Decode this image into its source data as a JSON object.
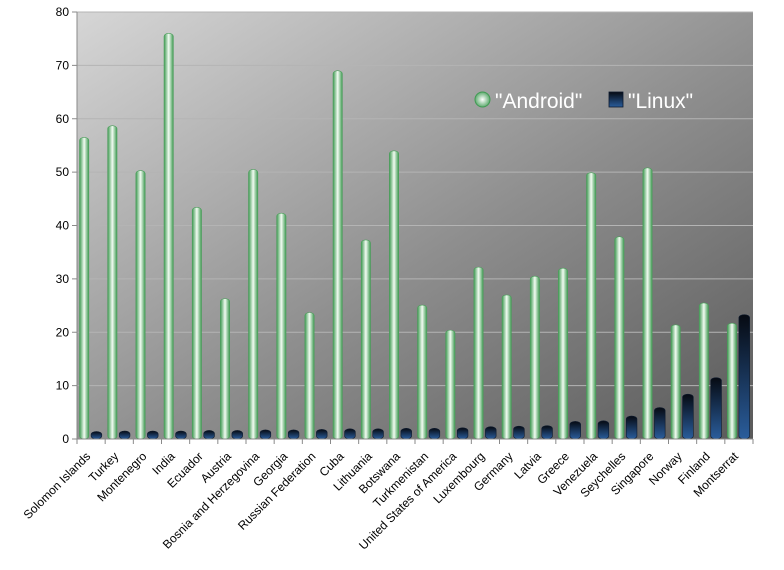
{
  "chart_data": {
    "type": "bar",
    "categories": [
      "Solomon Islands",
      "Turkey",
      "Montenegro",
      "India",
      "Ecuador",
      "Austria",
      "Bosnia and Herzegovina",
      "Georgia",
      "Russian Federation",
      "Cuba",
      "Lithuania",
      "Botswana",
      "Turkmenistan",
      "United States of America",
      "Luxembourg",
      "Germany",
      "Latvia",
      "Greece",
      "Venezuela",
      "Seychelles",
      "Singapore",
      "Norway",
      "Finland",
      "Montserrat"
    ],
    "series": [
      {
        "name": "\"Android\"",
        "color": "#3f9a52",
        "values": [
          56.5,
          58.7,
          50.3,
          76,
          43.4,
          26.3,
          50.5,
          42.3,
          23.7,
          69,
          37.3,
          54,
          25.1,
          20.4,
          32.2,
          27,
          30.5,
          32,
          49.9,
          37.9,
          50.8,
          21.4,
          25.5,
          21.7
        ]
      },
      {
        "name": "\"Linux\"",
        "color": "#1c3a66",
        "values": [
          1.4,
          1.5,
          1.5,
          1.5,
          1.6,
          1.6,
          1.7,
          1.7,
          1.8,
          1.9,
          1.9,
          2,
          2,
          2.1,
          2.3,
          2.4,
          2.5,
          3.3,
          3.4,
          4.3,
          5.9,
          8.4,
          11.5,
          23.3
        ]
      }
    ],
    "ylim": [
      0,
      80
    ],
    "yticks": [
      0,
      10,
      20,
      30,
      40,
      50,
      60,
      70,
      80
    ],
    "grid": true,
    "legend_position": "top-right",
    "title": "",
    "xlabel": "",
    "ylabel": ""
  }
}
